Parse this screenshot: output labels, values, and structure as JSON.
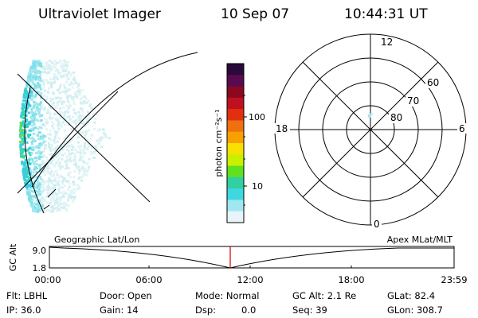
{
  "header": {
    "instrument": "Ultraviolet Imager",
    "date": "10 Sep 07",
    "time": "10:44:31 UT"
  },
  "colorbar": {
    "unit_label": "photon cm⁻²s⁻¹",
    "ticks": [
      "100",
      "10"
    ],
    "colors": [
      "#2a0a3a",
      "#5a0a50",
      "#8a0820",
      "#c01020",
      "#e03010",
      "#f07010",
      "#f8a000",
      "#f8e000",
      "#c8f000",
      "#60e020",
      "#30d0a0",
      "#40d8e0",
      "#a0e8f0",
      "#e8f4f8"
    ]
  },
  "polar": {
    "mlt_labels": {
      "top": "12",
      "bottom": "0",
      "left": "18",
      "right": "6"
    },
    "lat_labels": [
      "60",
      "70",
      "80"
    ]
  },
  "timeline": {
    "ylabel": "GC Alt",
    "y_ticks": [
      "9.0",
      "1.8"
    ],
    "left_title": "Geographic Lat/Lon",
    "right_title": "Apex MLat/MLT",
    "x_ticks": [
      "00:00",
      "06:00",
      "12:00",
      "18:00",
      "23:59"
    ]
  },
  "info": {
    "flt": "Flt: LBHL",
    "ip": "IP: 36.0",
    "door": "Door: Open",
    "gain": "Gain: 14",
    "mode": "Mode: Normal",
    "dsp_label": "Dsp:",
    "dsp_value": "0.0",
    "gc_alt": "GC Alt: 2.1 Re",
    "seq": "Seq: 39",
    "glat": "GLat: 82.4",
    "glon": "GLon: 308.7"
  }
}
